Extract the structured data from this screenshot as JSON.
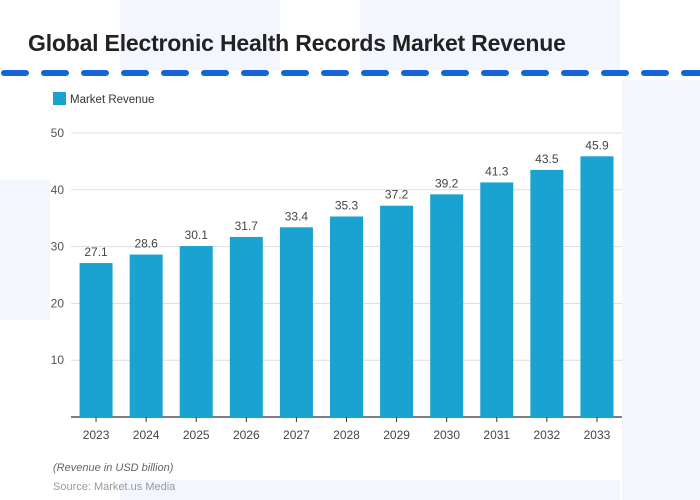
{
  "title": "Global Electronic Health Records Market Revenue",
  "colors": {
    "bar": "#1aa3d0",
    "divider": "#1565d8",
    "background_shape": "#f3f7fd"
  },
  "chart_data": {
    "type": "bar",
    "title": "Global Electronic Health Records Market Revenue",
    "categories": [
      "2023",
      "2024",
      "2025",
      "2026",
      "2027",
      "2028",
      "2029",
      "2030",
      "2031",
      "2032",
      "2033"
    ],
    "series": [
      {
        "name": "Market Revenue",
        "values": [
          27.1,
          28.6,
          30.1,
          31.7,
          33.4,
          35.3,
          37.2,
          39.2,
          41.3,
          43.5,
          45.9
        ]
      }
    ],
    "data_labels": [
      "27.1",
      "28.6",
      "30.1",
      "31.7",
      "33.4",
      "35.3",
      "37.2",
      "39.2",
      "41.3",
      "43.5",
      "45.9"
    ],
    "yticks": [
      "10",
      "20",
      "30",
      "40",
      "50"
    ],
    "ylim": [
      0,
      50
    ],
    "grid": true,
    "legend_position": "top-left",
    "xlabel": "",
    "ylabel": ""
  },
  "unit_note": "(Revenue in USD billion)",
  "source": "Source: Market.us Media"
}
